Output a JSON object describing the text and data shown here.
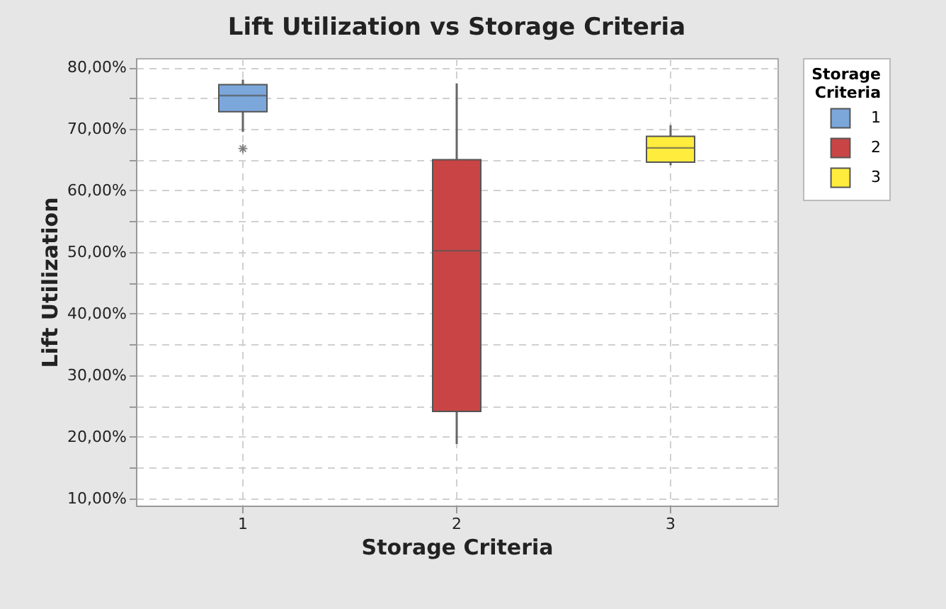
{
  "chart_data": {
    "type": "box",
    "title": "Lift Utilization vs Storage Criteria",
    "xlabel": "Storage Criteria",
    "ylabel": "Lift Utilization",
    "legend_title": "Storage Criteria",
    "legend": "top right",
    "grid": true,
    "marker": "star",
    "categories": [
      "1",
      "2",
      "3"
    ],
    "series": [
      {
        "name": "1",
        "color": "#7ba7db",
        "boxes": [
          {
            "low": 69.5,
            "q1": 72.8,
            "median": 75.4,
            "q3": 77.2,
            "high": 78.0,
            "outliers": [
              66.8
            ]
          },
          null,
          null
        ]
      },
      {
        "name": "2",
        "color": "#c94545",
        "boxes": [
          null,
          {
            "low": 18.8,
            "q1": 24.1,
            "median": 50.2,
            "q3": 65.0,
            "high": 77.4
          },
          null
        ]
      },
      {
        "name": "3",
        "color": "#ffec3d",
        "boxes": [
          null,
          null,
          {
            "low": 64.1,
            "q1": 64.6,
            "median": 66.9,
            "q3": 68.8,
            "high": 70.6
          }
        ]
      }
    ],
    "ylim": [
      8.8,
      81.5
    ],
    "yticks": [
      {
        "value": 10,
        "label": "10,00%"
      },
      {
        "value": 15,
        "label": null
      },
      {
        "value": 20,
        "label": "20,00%"
      },
      {
        "value": 25,
        "label": null
      },
      {
        "value": 30,
        "label": "30,00%"
      },
      {
        "value": 35,
        "label": null
      },
      {
        "value": 40,
        "label": "40,00%"
      },
      {
        "value": 45,
        "label": null
      },
      {
        "value": 50,
        "label": "50,00%"
      },
      {
        "value": 55,
        "label": null
      },
      {
        "value": 60,
        "label": "60,00%"
      },
      {
        "value": 65,
        "label": null
      },
      {
        "value": 70,
        "label": "70,00%"
      },
      {
        "value": 75,
        "label": null
      },
      {
        "value": 80,
        "label": "80,00%"
      }
    ]
  }
}
